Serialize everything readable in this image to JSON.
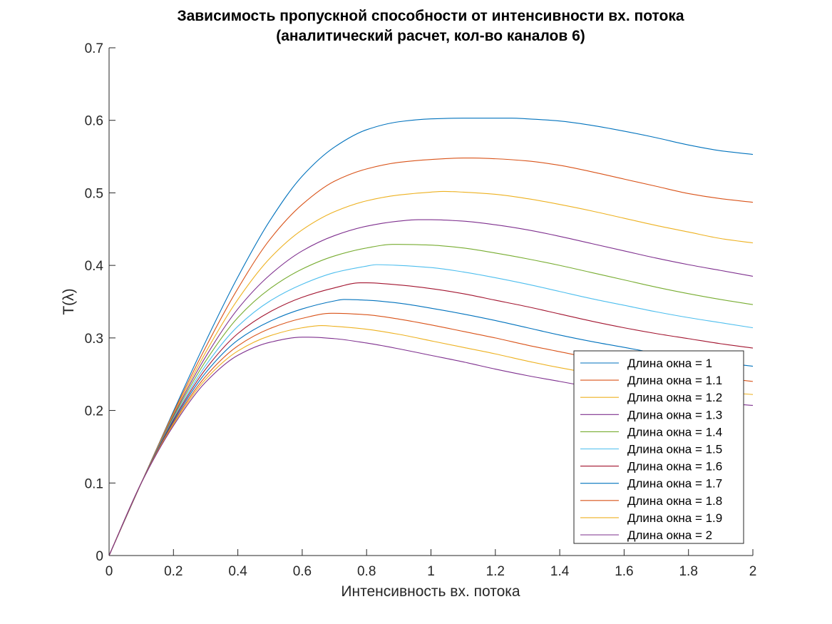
{
  "chart_data": {
    "type": "line",
    "title": "Зависимость пропускной способности от интенсивности вх. потока",
    "subtitle": "(аналитический расчет, кол-во каналов 6)",
    "xlabel": "Интенсивность вх. потока",
    "ylabel": "T(λ)",
    "xlim": [
      0,
      2
    ],
    "ylim": [
      0,
      0.7
    ],
    "xticks": [
      0,
      0.2,
      0.4,
      0.6,
      0.8,
      1,
      1.2,
      1.4,
      1.6,
      1.8,
      2
    ],
    "xtick_labels": [
      "0",
      "0.2",
      "0.4",
      "0.6",
      "0.8",
      "1",
      "1.2",
      "1.4",
      "1.6",
      "1.8",
      "2"
    ],
    "yticks": [
      0,
      0.1,
      0.2,
      0.3,
      0.4,
      0.5,
      0.6,
      0.7
    ],
    "ytick_labels": [
      "0",
      "0.1",
      "0.2",
      "0.3",
      "0.4",
      "0.5",
      "0.6",
      "0.7"
    ],
    "grid": false,
    "legend_position": "lower-right",
    "series": [
      {
        "name": "Длина окна = 1",
        "color": "#0072BD",
        "x": [
          0,
          0.1,
          0.2,
          0.3,
          0.4,
          0.5,
          0.6,
          0.7,
          0.8,
          0.9,
          1.0,
          1.1,
          1.2,
          1.25,
          1.3,
          1.4,
          1.5,
          1.6,
          1.7,
          1.8,
          1.9,
          2.0
        ],
        "y": [
          0,
          0.1,
          0.199,
          0.295,
          0.384,
          0.462,
          0.523,
          0.563,
          0.587,
          0.598,
          0.602,
          0.603,
          0.603,
          0.603,
          0.602,
          0.599,
          0.593,
          0.585,
          0.576,
          0.566,
          0.558,
          0.553
        ]
      },
      {
        "name": "Длина окна = 1.1",
        "color": "#D95319",
        "x": [
          0,
          0.1,
          0.2,
          0.3,
          0.4,
          0.5,
          0.6,
          0.7,
          0.8,
          0.9,
          1.0,
          1.1,
          1.13,
          1.2,
          1.3,
          1.4,
          1.5,
          1.6,
          1.7,
          1.8,
          1.9,
          2.0
        ],
        "y": [
          0,
          0.1,
          0.197,
          0.287,
          0.368,
          0.436,
          0.484,
          0.516,
          0.533,
          0.542,
          0.546,
          0.548,
          0.548,
          0.547,
          0.544,
          0.538,
          0.529,
          0.519,
          0.509,
          0.499,
          0.492,
          0.487
        ]
      },
      {
        "name": "Длина окна = 1.2",
        "color": "#EDB120",
        "x": [
          0,
          0.1,
          0.2,
          0.3,
          0.4,
          0.5,
          0.6,
          0.7,
          0.8,
          0.9,
          1.0,
          1.04,
          1.1,
          1.2,
          1.3,
          1.4,
          1.5,
          1.6,
          1.7,
          1.8,
          1.9,
          2.0
        ],
        "y": [
          0,
          0.1,
          0.195,
          0.28,
          0.353,
          0.41,
          0.449,
          0.474,
          0.489,
          0.497,
          0.501,
          0.502,
          0.501,
          0.498,
          0.492,
          0.484,
          0.475,
          0.465,
          0.455,
          0.446,
          0.437,
          0.431
        ]
      },
      {
        "name": "Длина окна = 1.3",
        "color": "#7E2F8E",
        "x": [
          0,
          0.1,
          0.2,
          0.3,
          0.4,
          0.5,
          0.6,
          0.7,
          0.8,
          0.9,
          0.96,
          1.0,
          1.1,
          1.2,
          1.3,
          1.4,
          1.5,
          1.6,
          1.7,
          1.8,
          1.9,
          2.0
        ],
        "y": [
          0,
          0.1,
          0.193,
          0.274,
          0.34,
          0.387,
          0.42,
          0.441,
          0.454,
          0.461,
          0.463,
          0.463,
          0.461,
          0.456,
          0.449,
          0.44,
          0.43,
          0.42,
          0.41,
          0.401,
          0.393,
          0.385
        ]
      },
      {
        "name": "Длина окна = 1.4",
        "color": "#77AC30",
        "x": [
          0,
          0.1,
          0.2,
          0.3,
          0.4,
          0.5,
          0.6,
          0.7,
          0.8,
          0.88,
          0.9,
          1.0,
          1.1,
          1.2,
          1.3,
          1.4,
          1.5,
          1.6,
          1.7,
          1.8,
          1.9,
          2.0
        ],
        "y": [
          0,
          0.1,
          0.191,
          0.268,
          0.328,
          0.368,
          0.395,
          0.413,
          0.424,
          0.429,
          0.429,
          0.428,
          0.424,
          0.417,
          0.409,
          0.4,
          0.39,
          0.38,
          0.37,
          0.361,
          0.353,
          0.346
        ]
      },
      {
        "name": "Длина окна = 1.5",
        "color": "#4DBEEE",
        "x": [
          0,
          0.1,
          0.2,
          0.3,
          0.4,
          0.5,
          0.6,
          0.7,
          0.8,
          0.83,
          0.9,
          1.0,
          1.1,
          1.2,
          1.3,
          1.4,
          1.5,
          1.6,
          1.7,
          1.8,
          1.9,
          2.0
        ],
        "y": [
          0,
          0.1,
          0.189,
          0.262,
          0.316,
          0.351,
          0.374,
          0.39,
          0.399,
          0.401,
          0.4,
          0.397,
          0.391,
          0.383,
          0.374,
          0.364,
          0.354,
          0.345,
          0.336,
          0.328,
          0.321,
          0.314
        ]
      },
      {
        "name": "Длина окна = 1.6",
        "color": "#A2142F",
        "x": [
          0,
          0.1,
          0.2,
          0.3,
          0.4,
          0.5,
          0.6,
          0.7,
          0.78,
          0.8,
          0.9,
          1.0,
          1.1,
          1.2,
          1.3,
          1.4,
          1.5,
          1.6,
          1.7,
          1.8,
          1.9,
          2.0
        ],
        "y": [
          0,
          0.1,
          0.187,
          0.257,
          0.306,
          0.336,
          0.356,
          0.369,
          0.376,
          0.376,
          0.373,
          0.368,
          0.361,
          0.352,
          0.343,
          0.333,
          0.323,
          0.314,
          0.306,
          0.299,
          0.292,
          0.286
        ]
      },
      {
        "name": "Длина окна = 1.7",
        "color": "#0072BD",
        "x": [
          0,
          0.1,
          0.2,
          0.3,
          0.4,
          0.5,
          0.6,
          0.7,
          0.73,
          0.8,
          0.9,
          1.0,
          1.1,
          1.2,
          1.3,
          1.4,
          1.5,
          1.6,
          1.7,
          1.8,
          1.9,
          2.0
        ],
        "y": [
          0,
          0.1,
          0.185,
          0.252,
          0.297,
          0.323,
          0.34,
          0.351,
          0.353,
          0.352,
          0.348,
          0.341,
          0.333,
          0.324,
          0.314,
          0.304,
          0.295,
          0.287,
          0.279,
          0.272,
          0.266,
          0.261
        ]
      },
      {
        "name": "Длина окна = 1.8",
        "color": "#D95319",
        "x": [
          0,
          0.1,
          0.2,
          0.3,
          0.4,
          0.5,
          0.6,
          0.69,
          0.7,
          0.8,
          0.9,
          1.0,
          1.1,
          1.2,
          1.3,
          1.4,
          1.5,
          1.6,
          1.7,
          1.8,
          1.9,
          2.0
        ],
        "y": [
          0,
          0.1,
          0.183,
          0.247,
          0.289,
          0.313,
          0.327,
          0.334,
          0.334,
          0.332,
          0.326,
          0.318,
          0.309,
          0.3,
          0.29,
          0.281,
          0.272,
          0.264,
          0.257,
          0.251,
          0.245,
          0.24
        ]
      },
      {
        "name": "Длина окна = 1.9",
        "color": "#EDB120",
        "x": [
          0,
          0.1,
          0.2,
          0.3,
          0.4,
          0.5,
          0.6,
          0.66,
          0.7,
          0.8,
          0.9,
          1.0,
          1.1,
          1.2,
          1.3,
          1.4,
          1.5,
          1.6,
          1.7,
          1.8,
          1.9,
          2.0
        ],
        "y": [
          0,
          0.1,
          0.181,
          0.243,
          0.282,
          0.303,
          0.314,
          0.317,
          0.316,
          0.312,
          0.305,
          0.296,
          0.287,
          0.278,
          0.268,
          0.259,
          0.251,
          0.243,
          0.236,
          0.23,
          0.225,
          0.222
        ]
      },
      {
        "name": "Длина окна = 2",
        "color": "#7E2F8E",
        "x": [
          0,
          0.1,
          0.2,
          0.3,
          0.4,
          0.5,
          0.6,
          0.62,
          0.7,
          0.8,
          0.9,
          1.0,
          1.1,
          1.2,
          1.3,
          1.4,
          1.5,
          1.6,
          1.7,
          1.8,
          1.9,
          2.0
        ],
        "y": [
          0,
          0.1,
          0.179,
          0.239,
          0.276,
          0.294,
          0.301,
          0.301,
          0.299,
          0.293,
          0.285,
          0.276,
          0.267,
          0.257,
          0.248,
          0.24,
          0.232,
          0.225,
          0.219,
          0.214,
          0.21,
          0.207
        ]
      }
    ]
  }
}
